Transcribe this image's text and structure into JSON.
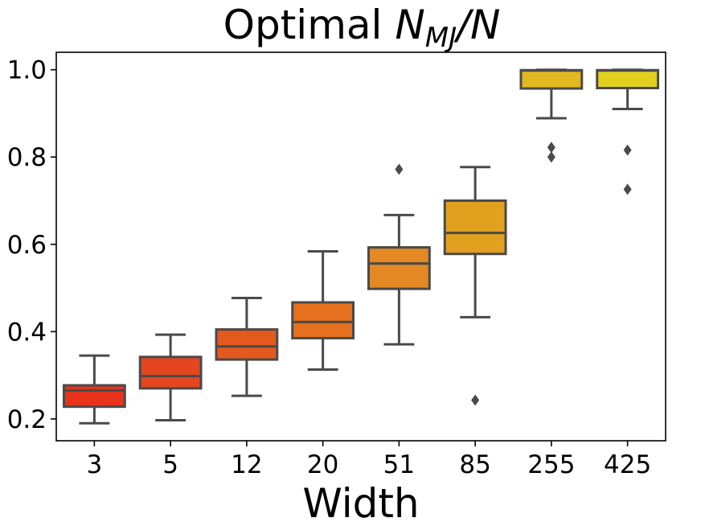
{
  "chart_data": {
    "type": "box",
    "title": "Optimal N_MJ/N",
    "title_prefix": "Optimal ",
    "title_var": "N",
    "title_sub": "MJ",
    "title_suffix": "/N",
    "xlabel": "Width",
    "ylabel": "",
    "ylim": [
      0.15,
      1.04
    ],
    "yticks": [
      "0.2",
      "0.4",
      "0.6",
      "0.8",
      "1.0"
    ],
    "categories": [
      "3",
      "5",
      "12",
      "20",
      "51",
      "85",
      "255",
      "425"
    ],
    "colors": [
      "#e8321c",
      "#e4461f",
      "#e4591e",
      "#e5701d",
      "#e38823",
      "#e2a01f",
      "#e2b820",
      "#e1d11e"
    ],
    "boxes": [
      {
        "category": "3",
        "whislo": 0.19,
        "q1": 0.228,
        "median": 0.265,
        "q3": 0.277,
        "whishi": 0.345,
        "fliers": []
      },
      {
        "category": "5",
        "whislo": 0.197,
        "q1": 0.27,
        "median": 0.298,
        "q3": 0.342,
        "whishi": 0.393,
        "fliers": []
      },
      {
        "category": "12",
        "whislo": 0.253,
        "q1": 0.336,
        "median": 0.366,
        "q3": 0.405,
        "whishi": 0.477,
        "fliers": []
      },
      {
        "category": "20",
        "whislo": 0.313,
        "q1": 0.385,
        "median": 0.422,
        "q3": 0.467,
        "whishi": 0.584,
        "fliers": []
      },
      {
        "category": "51",
        "whislo": 0.371,
        "q1": 0.498,
        "median": 0.556,
        "q3": 0.593,
        "whishi": 0.667,
        "fliers": [
          0.772
        ]
      },
      {
        "category": "85",
        "whislo": 0.433,
        "q1": 0.578,
        "median": 0.626,
        "q3": 0.7,
        "whishi": 0.777,
        "fliers": [
          0.243
        ]
      },
      {
        "category": "255",
        "whislo": 0.889,
        "q1": 0.957,
        "median": 0.998,
        "q3": 0.999,
        "whishi": 1.0,
        "fliers": [
          0.822,
          0.8
        ]
      },
      {
        "category": "425",
        "whislo": 0.91,
        "q1": 0.958,
        "median": 0.998,
        "q3": 0.999,
        "whishi": 1.0,
        "fliers": [
          0.816,
          0.726
        ]
      }
    ]
  }
}
